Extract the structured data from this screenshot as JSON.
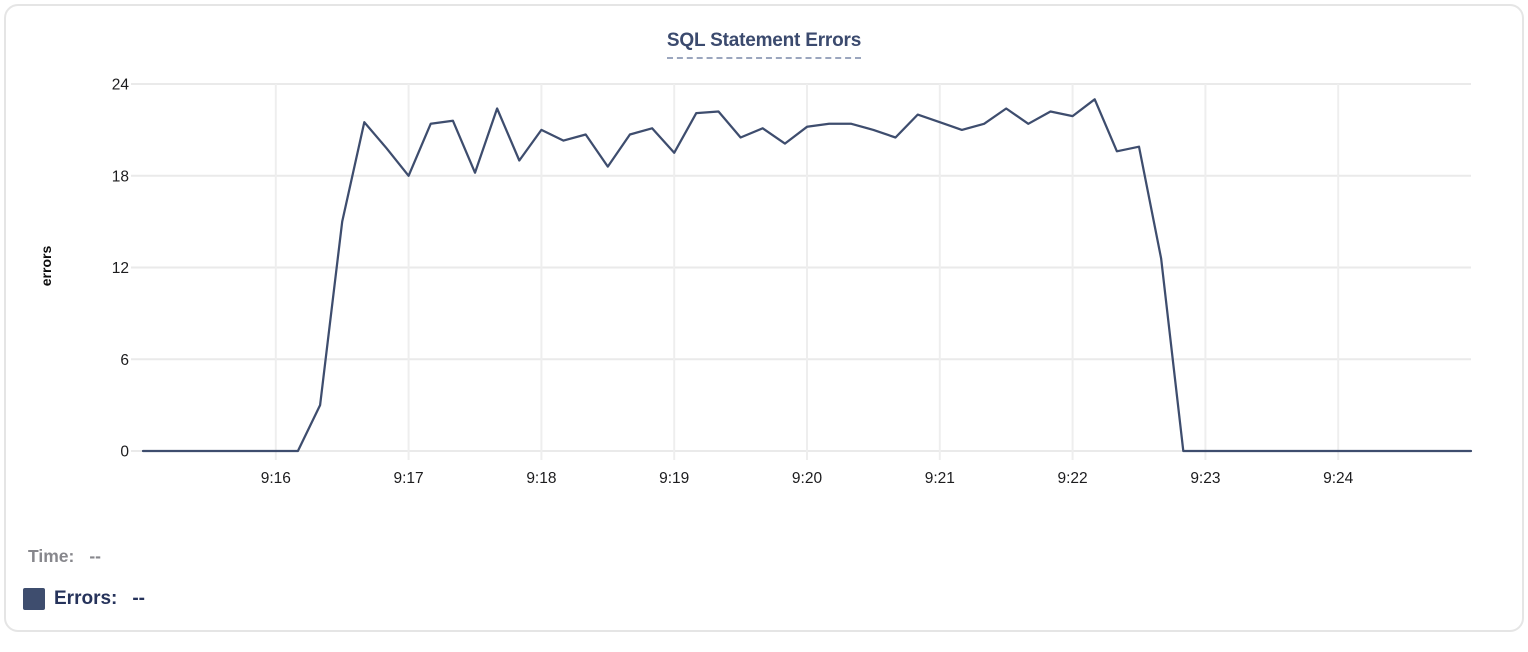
{
  "card": {
    "title": "SQL Statement Errors"
  },
  "chart_data": {
    "type": "line",
    "title": "SQL Statement Errors",
    "xlabel": "",
    "ylabel": "errors",
    "x_start_time": "9:15:00",
    "x_end_time": "9:25:00",
    "point_interval_seconds": 10,
    "x_tick_labels": [
      "9:16",
      "9:17",
      "9:18",
      "9:19",
      "9:20",
      "9:21",
      "9:22",
      "9:23",
      "9:24"
    ],
    "y_ticks": [
      0,
      6,
      12,
      18,
      24
    ],
    "ylim": [
      0,
      24
    ],
    "grid": true,
    "legend_position": "bottom-left",
    "line_color": "#3e4d6e",
    "series": [
      {
        "name": "Errors",
        "values": [
          0,
          0,
          0,
          0,
          0,
          0,
          0,
          0,
          3,
          15,
          21.5,
          19.8,
          18,
          21.4,
          21.6,
          18.2,
          22.4,
          19,
          21,
          20.3,
          20.7,
          18.6,
          20.7,
          21.1,
          19.5,
          22.1,
          22.2,
          20.5,
          21.1,
          20.1,
          21.2,
          21.4,
          21.4,
          21,
          20.5,
          22,
          21.5,
          21,
          21.4,
          22.4,
          21.4,
          22.2,
          21.9,
          23,
          19.6,
          19.9,
          12.6,
          0,
          0,
          0,
          0,
          0,
          0,
          0,
          0,
          0,
          0,
          0,
          0,
          0,
          0
        ]
      }
    ]
  },
  "legend": {
    "time_label": "Time:",
    "time_value": "--",
    "errors_label": "Errors:",
    "errors_value": "--",
    "errors_swatch_color": "#3e4d6e"
  },
  "colors": {
    "line": "#3e4d6e",
    "title_text": "#3b4a6e",
    "title_underline": "#9ba6be",
    "grid_horizontal": "#eaeaea",
    "grid_vertical": "#eeeeee",
    "tick_text": "#1c1c1e",
    "legend_gray": "#87878c",
    "legend_navy": "#26335b",
    "card_border": "#e5e5e5"
  }
}
